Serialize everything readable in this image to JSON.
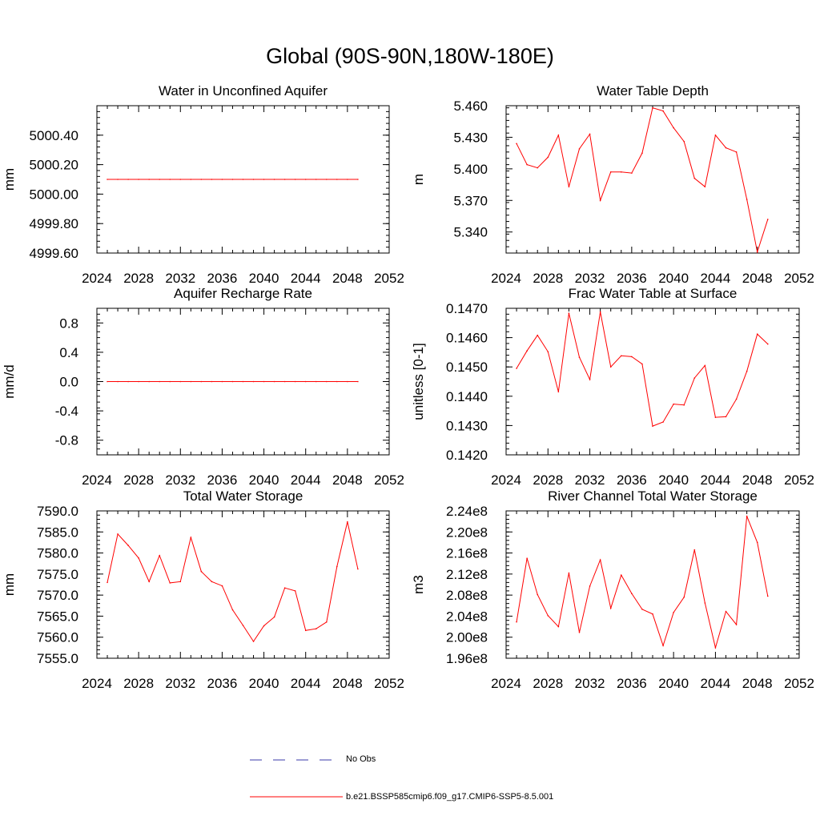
{
  "page_title": "Global (90S-90N,180W-180E)",
  "colors": {
    "series": "#ff0000",
    "obs": "#3a3aa8",
    "axis": "#000000"
  },
  "legend": {
    "obs_label": "No Obs",
    "model_label": "b.e21.BSSP585cmip6.f09_g17.CMIP6-SSP5-8.5.001"
  },
  "chart_data": [
    {
      "type": "line",
      "title": "Water in Unconfined Aquifer",
      "ylabel": "mm",
      "xlim": [
        2024,
        2052
      ],
      "xticks": [
        2024,
        2028,
        2032,
        2036,
        2040,
        2044,
        2048,
        2052
      ],
      "ylim": [
        4999.6,
        5000.6
      ],
      "yticks": [
        4999.6,
        4999.8,
        5000.0,
        5000.2,
        5000.4
      ],
      "ytick_labels": [
        "4999.60",
        "4999.80",
        "5000.00",
        "5000.20",
        "5000.40"
      ],
      "x": [
        2025,
        2026,
        2027,
        2028,
        2029,
        2030,
        2031,
        2032,
        2033,
        2034,
        2035,
        2036,
        2037,
        2038,
        2039,
        2040,
        2041,
        2042,
        2043,
        2044,
        2045,
        2046,
        2047,
        2048,
        2049
      ],
      "series": [
        {
          "values": [
            5000.1,
            5000.1,
            5000.1,
            5000.1,
            5000.1,
            5000.1,
            5000.1,
            5000.1,
            5000.1,
            5000.1,
            5000.1,
            5000.1,
            5000.1,
            5000.1,
            5000.1,
            5000.1,
            5000.1,
            5000.1,
            5000.1,
            5000.1,
            5000.1,
            5000.1,
            5000.1,
            5000.1,
            5000.1
          ]
        }
      ]
    },
    {
      "type": "line",
      "title": "Water Table Depth",
      "ylabel": "m",
      "xlim": [
        2024,
        2052
      ],
      "xticks": [
        2024,
        2028,
        2032,
        2036,
        2040,
        2044,
        2048,
        2052
      ],
      "ylim": [
        5.32,
        5.46
      ],
      "yticks": [
        5.34,
        5.37,
        5.4,
        5.43,
        5.46
      ],
      "ytick_labels": [
        "5.340",
        "5.370",
        "5.400",
        "5.430",
        "5.460"
      ],
      "x": [
        2025,
        2026,
        2027,
        2028,
        2029,
        2030,
        2031,
        2032,
        2033,
        2034,
        2035,
        2036,
        2037,
        2038,
        2039,
        2040,
        2041,
        2042,
        2043,
        2044,
        2045,
        2046,
        2047,
        2048,
        2049
      ],
      "series": [
        {
          "values": [
            5.424,
            5.404,
            5.401,
            5.411,
            5.432,
            5.383,
            5.419,
            5.433,
            5.37,
            5.397,
            5.397,
            5.396,
            5.415,
            5.458,
            5.455,
            5.439,
            5.426,
            5.391,
            5.383,
            5.432,
            5.42,
            5.416,
            5.371,
            5.321,
            5.352
          ]
        }
      ]
    },
    {
      "type": "line",
      "title": "Aquifer Recharge Rate",
      "ylabel": "mm/d",
      "xlim": [
        2024,
        2052
      ],
      "xticks": [
        2024,
        2028,
        2032,
        2036,
        2040,
        2044,
        2048,
        2052
      ],
      "ylim": [
        -1.0,
        1.0
      ],
      "yticks": [
        -0.8,
        -0.4,
        0.0,
        0.4,
        0.8
      ],
      "ytick_labels": [
        "-0.8",
        "-0.4",
        "0.0",
        "0.4",
        "0.8"
      ],
      "x": [
        2025,
        2026,
        2027,
        2028,
        2029,
        2030,
        2031,
        2032,
        2033,
        2034,
        2035,
        2036,
        2037,
        2038,
        2039,
        2040,
        2041,
        2042,
        2043,
        2044,
        2045,
        2046,
        2047,
        2048,
        2049
      ],
      "series": [
        {
          "values": [
            0,
            0,
            0,
            0,
            0,
            0,
            0,
            0,
            0,
            0,
            0,
            0,
            0,
            0,
            0,
            0,
            0,
            0,
            0,
            0,
            0,
            0,
            0,
            0,
            0
          ]
        }
      ]
    },
    {
      "type": "line",
      "title": "Frac Water Table at Surface",
      "ylabel": "unitless [0-1]",
      "xlim": [
        2024,
        2052
      ],
      "xticks": [
        2024,
        2028,
        2032,
        2036,
        2040,
        2044,
        2048,
        2052
      ],
      "ylim": [
        0.142,
        0.147
      ],
      "yticks": [
        0.142,
        0.143,
        0.144,
        0.145,
        0.146,
        0.147
      ],
      "ytick_labels": [
        "0.1420",
        "0.1430",
        "0.1440",
        "0.1450",
        "0.1460",
        "0.1470"
      ],
      "x": [
        2025,
        2026,
        2027,
        2028,
        2029,
        2030,
        2031,
        2032,
        2033,
        2034,
        2035,
        2036,
        2037,
        2038,
        2039,
        2040,
        2041,
        2042,
        2043,
        2044,
        2045,
        2046,
        2047,
        2048,
        2049
      ],
      "series": [
        {
          "values": [
            0.14495,
            0.14555,
            0.14608,
            0.14552,
            0.14415,
            0.14683,
            0.14533,
            0.14457,
            0.14688,
            0.145,
            0.14538,
            0.14535,
            0.1451,
            0.14298,
            0.14312,
            0.14373,
            0.1437,
            0.14462,
            0.14505,
            0.14328,
            0.1433,
            0.1439,
            0.14485,
            0.14612,
            0.14578
          ]
        }
      ]
    },
    {
      "type": "line",
      "title": "Total Water Storage",
      "ylabel": "mm",
      "xlim": [
        2024,
        2052
      ],
      "xticks": [
        2024,
        2028,
        2032,
        2036,
        2040,
        2044,
        2048,
        2052
      ],
      "ylim": [
        7555.0,
        7590.0
      ],
      "yticks": [
        7555,
        7560,
        7565,
        7570,
        7575,
        7580,
        7585,
        7590
      ],
      "ytick_labels": [
        "7555.0",
        "7560.0",
        "7565.0",
        "7570.0",
        "7575.0",
        "7580.0",
        "7585.0",
        "7590.0"
      ],
      "x": [
        2025,
        2026,
        2027,
        2028,
        2029,
        2030,
        2031,
        2032,
        2033,
        2034,
        2035,
        2036,
        2037,
        2038,
        2039,
        2040,
        2041,
        2042,
        2043,
        2044,
        2045,
        2046,
        2047,
        2048,
        2049
      ],
      "series": [
        {
          "values": [
            7573.0,
            7584.5,
            7581.8,
            7578.8,
            7573.2,
            7579.4,
            7572.9,
            7573.2,
            7583.7,
            7575.6,
            7573.2,
            7572.2,
            7566.5,
            7562.8,
            7559.0,
            7562.7,
            7564.8,
            7571.7,
            7571.0,
            7561.6,
            7562.0,
            7563.6,
            7576.8,
            7587.4,
            7576.2
          ]
        }
      ]
    },
    {
      "type": "line",
      "title": "River Channel Total Water Storage",
      "ylabel": "m3",
      "xlim": [
        2024,
        2052
      ],
      "xticks": [
        2024,
        2028,
        2032,
        2036,
        2040,
        2044,
        2048,
        2052
      ],
      "ylim": [
        196000000.0,
        224000000.0
      ],
      "yticks": [
        196000000.0,
        200000000.0,
        204000000.0,
        208000000.0,
        212000000.0,
        216000000.0,
        220000000.0,
        224000000.0
      ],
      "ytick_labels": [
        "1.96e8",
        "2.00e8",
        "2.04e8",
        "2.08e8",
        "2.12e8",
        "2.16e8",
        "2.20e8",
        "2.24e8"
      ],
      "x": [
        2025,
        2026,
        2027,
        2028,
        2029,
        2030,
        2031,
        2032,
        2033,
        2034,
        2035,
        2036,
        2037,
        2038,
        2039,
        2040,
        2041,
        2042,
        2043,
        2044,
        2045,
        2046,
        2047,
        2048,
        2049
      ],
      "series": [
        {
          "values": [
            202900000.0,
            215000000.0,
            208100000.0,
            204100000.0,
            202000000.0,
            212200000.0,
            200900000.0,
            209700000.0,
            214700000.0,
            205500000.0,
            211800000.0,
            208300000.0,
            205300000.0,
            204400000.0,
            198400000.0,
            204700000.0,
            207600000.0,
            216600000.0,
            206500000.0,
            198000000.0,
            204900000.0,
            202400000.0,
            223000000.0,
            218000000.0,
            207800000.0
          ]
        }
      ]
    }
  ]
}
